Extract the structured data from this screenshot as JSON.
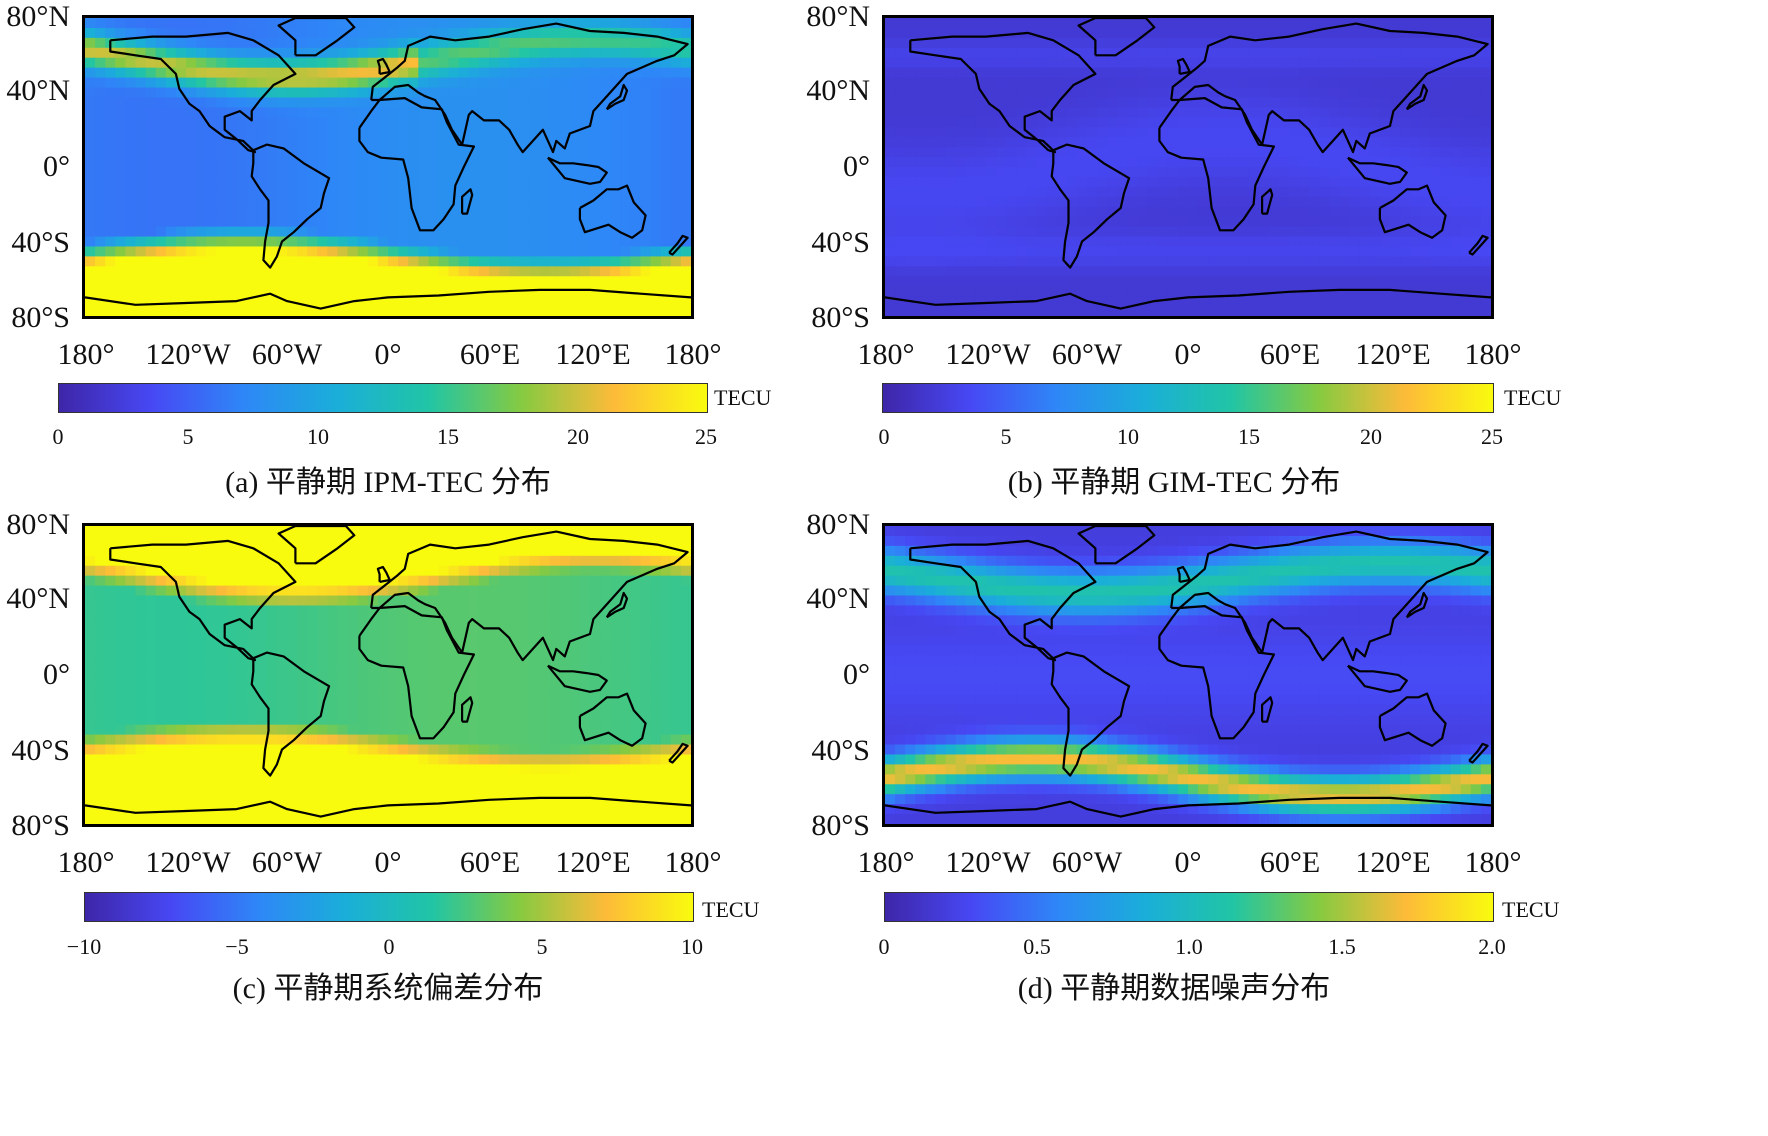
{
  "colormap": [
    "#3e26a8",
    "#4748f4",
    "#2e87f7",
    "#1aaed9",
    "#21c5a5",
    "#86ca41",
    "#fdbb39",
    "#f9fb0e"
  ],
  "lat_labels": [
    "80°N",
    "40°N",
    "0°",
    "40°S",
    "80°S"
  ],
  "lon_labels": [
    "180°",
    "120°W",
    "60°W",
    "0°",
    "60°E",
    "120°E",
    "180°"
  ],
  "panels": [
    {
      "id": "a",
      "caption": "(a) 平静期 IPM-TEC 分布",
      "unit": "TECU",
      "ticks": [
        "0",
        "5",
        "10",
        "15",
        "20",
        "25"
      ],
      "pattern": "ipm",
      "range": [
        0,
        25
      ]
    },
    {
      "id": "b",
      "caption": "(b) 平静期 GIM-TEC 分布",
      "unit": "TECU",
      "ticks": [
        "0",
        "5",
        "10",
        "15",
        "20",
        "25"
      ],
      "pattern": "gim",
      "range": [
        0,
        25
      ]
    },
    {
      "id": "c",
      "caption": "(c) 平静期系统偏差分布",
      "unit": "TECU",
      "ticks": [
        "−10",
        "−5",
        "0",
        "5",
        "10"
      ],
      "pattern": "bias",
      "range": [
        -10,
        10
      ]
    },
    {
      "id": "d",
      "caption": "(d) 平静期数据噪声分布",
      "unit": "TECU",
      "ticks": [
        "0",
        "0.5",
        "1.0",
        "1.5",
        "2.0"
      ],
      "pattern": "noise",
      "range": [
        0,
        2
      ]
    }
  ]
}
